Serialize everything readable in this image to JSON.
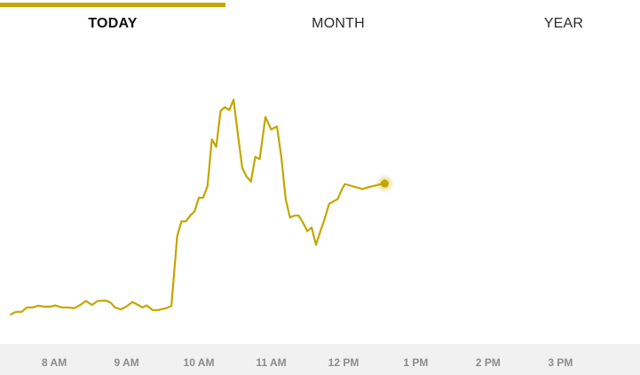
{
  "tabs": [
    {
      "label": "TODAY",
      "active": true
    },
    {
      "label": "MONTH",
      "active": false
    },
    {
      "label": "YEAR",
      "active": false
    }
  ],
  "colors": {
    "accent": "#c4a600",
    "axis_background": "#f1f1f1",
    "tick_text": "#8c8c8c"
  },
  "chart_data": {
    "type": "line",
    "title": "",
    "xlabel": "",
    "ylabel": "",
    "grid": false,
    "legend": "none",
    "x_ticks": [
      "8 AM",
      "9 AM",
      "10 AM",
      "11 AM",
      "12 PM",
      "1 PM",
      "2 PM",
      "3 PM"
    ],
    "x_domain_hours": [
      7.25,
      16.1
    ],
    "y_domain": [
      0,
      100
    ],
    "current_point_highlighted": true,
    "series": [
      {
        "x": [
          7.4,
          7.47,
          7.55,
          7.62,
          7.7,
          7.78,
          7.86,
          7.94,
          8.02,
          8.1,
          8.2,
          8.28,
          8.36,
          8.44,
          8.52,
          8.6,
          8.67,
          8.72,
          8.78,
          8.84,
          8.92,
          9.0,
          9.08,
          9.16,
          9.22,
          9.28,
          9.36,
          9.44,
          9.5,
          9.54,
          9.62,
          9.7,
          9.76,
          9.82,
          9.88,
          9.94,
          10.0,
          10.06,
          10.12,
          10.18,
          10.24,
          10.3,
          10.36,
          10.42,
          10.48,
          10.54,
          10.6,
          10.66,
          10.72,
          10.78,
          10.84,
          10.92,
          11.0,
          11.08,
          11.14,
          11.2,
          11.26,
          11.32,
          11.38,
          11.44,
          11.5,
          11.56,
          11.62,
          11.68,
          11.74,
          11.8,
          11.86,
          11.92,
          11.98,
          12.02,
          12.08,
          12.14,
          12.2,
          12.26,
          12.32,
          12.38,
          12.46,
          12.52,
          12.57
        ],
        "values": [
          0.5,
          1.5,
          1.5,
          3.3,
          3.3,
          4.0,
          3.6,
          3.6,
          4.1,
          3.3,
          3.3,
          3.0,
          4.3,
          5.9,
          4.3,
          5.9,
          6.0,
          6.0,
          5.2,
          3.3,
          2.5,
          3.7,
          5.5,
          4.3,
          3.3,
          4.1,
          2.2,
          2.2,
          2.7,
          2.9,
          3.9,
          32.0,
          38.0,
          38.0,
          40.3,
          42.0,
          47.5,
          47.5,
          52.3,
          71.0,
          68.0,
          82.5,
          84.0,
          82.8,
          87.0,
          73.0,
          59.5,
          56.0,
          54.0,
          64.0,
          63.0,
          80.0,
          75.0,
          76.2,
          64.0,
          47.0,
          39.5,
          40.3,
          40.3,
          37.4,
          34.0,
          35.5,
          28.5,
          34.0,
          39.0,
          45.0,
          46.0,
          47.0,
          51.0,
          53.0,
          52.5,
          52.0,
          51.5,
          51.0,
          51.5,
          52.0,
          52.5,
          53.0,
          53.2
        ]
      }
    ]
  }
}
